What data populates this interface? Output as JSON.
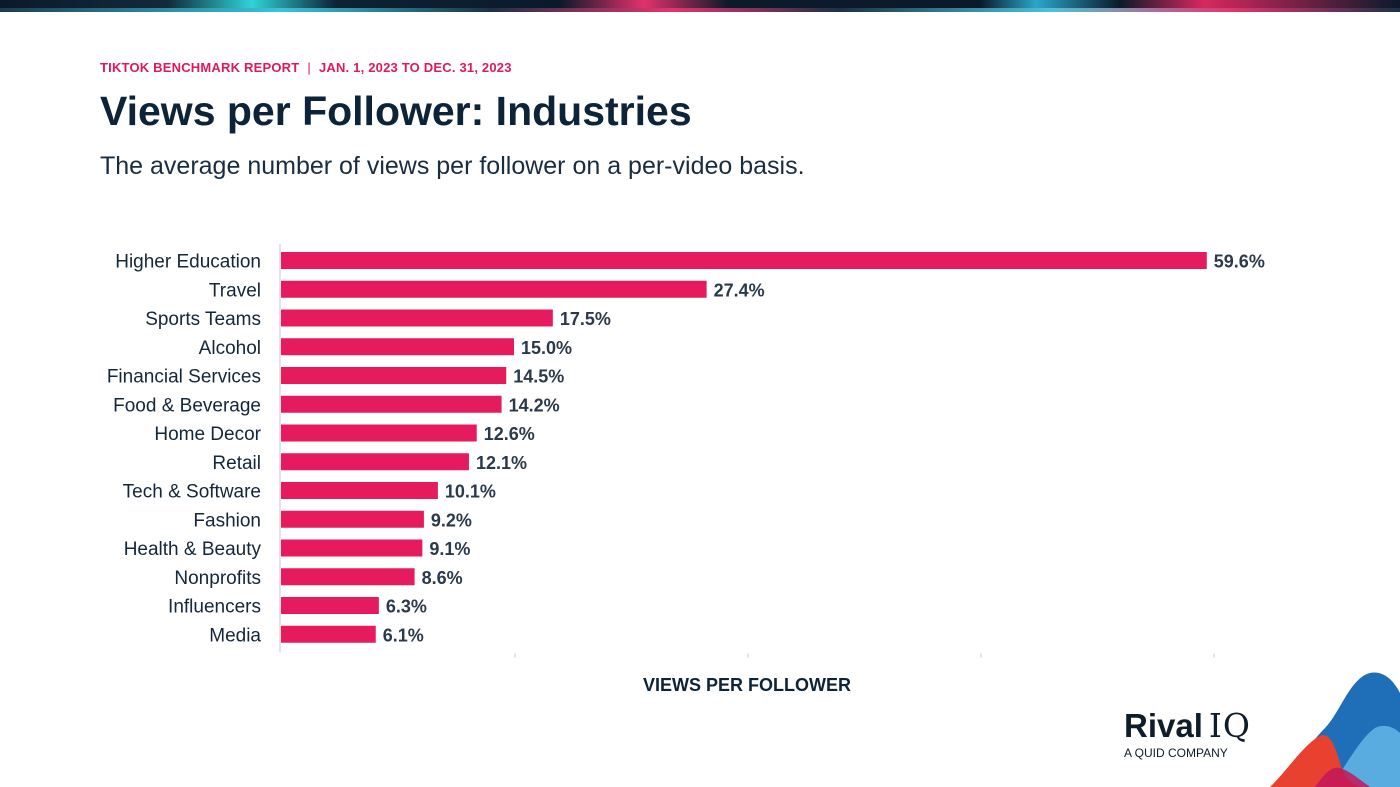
{
  "header": {
    "report_name": "TIKTOK BENCHMARK REPORT",
    "separator": "|",
    "date_range": "JAN. 1, 2023 TO DEC. 31, 2023",
    "title": "Views per Follower: Industries",
    "subtitle": "The average number of views per follower on a per-video basis."
  },
  "colors": {
    "bar": "#e51b5d",
    "accent": "#e0185c",
    "title": "#0d2338"
  },
  "chart_data": {
    "type": "bar",
    "orientation": "horizontal",
    "categories": [
      "Higher Education",
      "Travel",
      "Sports Teams",
      "Alcohol",
      "Financial Services",
      "Food & Beverage",
      "Home Decor",
      "Retail",
      "Tech & Software",
      "Fashion",
      "Health & Beauty",
      "Nonprofits",
      "Influencers",
      "Media"
    ],
    "values": [
      59.6,
      27.4,
      17.5,
      15.0,
      14.5,
      14.2,
      12.6,
      12.1,
      10.1,
      9.2,
      9.1,
      8.6,
      6.3,
      6.1
    ],
    "value_labels": [
      "59.6%",
      "27.4%",
      "17.5%",
      "15.0%",
      "14.5%",
      "14.2%",
      "12.6%",
      "12.1%",
      "10.1%",
      "9.2%",
      "9.1%",
      "8.6%",
      "6.3%",
      "6.1%"
    ],
    "xlabel": "VIEWS PER FOLLOWER",
    "ylabel": "",
    "xlim": [
      0,
      60
    ],
    "grid": false,
    "legend": false
  },
  "brand": {
    "name": "Rival",
    "name_suffix": "IQ",
    "tagline": "A QUID COMPANY"
  }
}
